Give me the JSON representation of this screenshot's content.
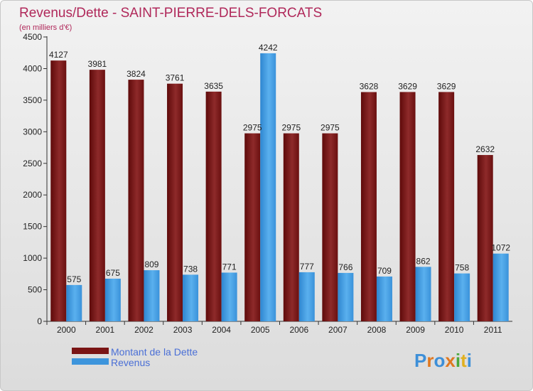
{
  "chart_data": {
    "type": "bar",
    "title": "Revenus/Dette - SAINT-PIERRE-DELS-FORCATS",
    "subtitle": "(en milliers d'€)",
    "categories": [
      "2000",
      "2001",
      "2002",
      "2003",
      "2004",
      "2005",
      "2006",
      "2007",
      "2008",
      "2009",
      "2010",
      "2011"
    ],
    "series": [
      {
        "name": "Montant de la Dette",
        "values": [
          4127,
          3981,
          3824,
          3761,
          3635,
          2975,
          2975,
          2975,
          3628,
          3629,
          3629,
          2632
        ],
        "color": "#7a1414"
      },
      {
        "name": "Revenus",
        "values": [
          575,
          675,
          809,
          738,
          771,
          4242,
          777,
          766,
          709,
          862,
          758,
          1072
        ],
        "color": "#3d95dc"
      }
    ],
    "ylim": [
      0,
      4500
    ],
    "yticks": [
      0,
      500,
      1000,
      1500,
      2000,
      2500,
      3000,
      3500,
      4000,
      4500
    ],
    "grid": false,
    "legend_position": "bottom-left",
    "logo": "Proxiti"
  }
}
